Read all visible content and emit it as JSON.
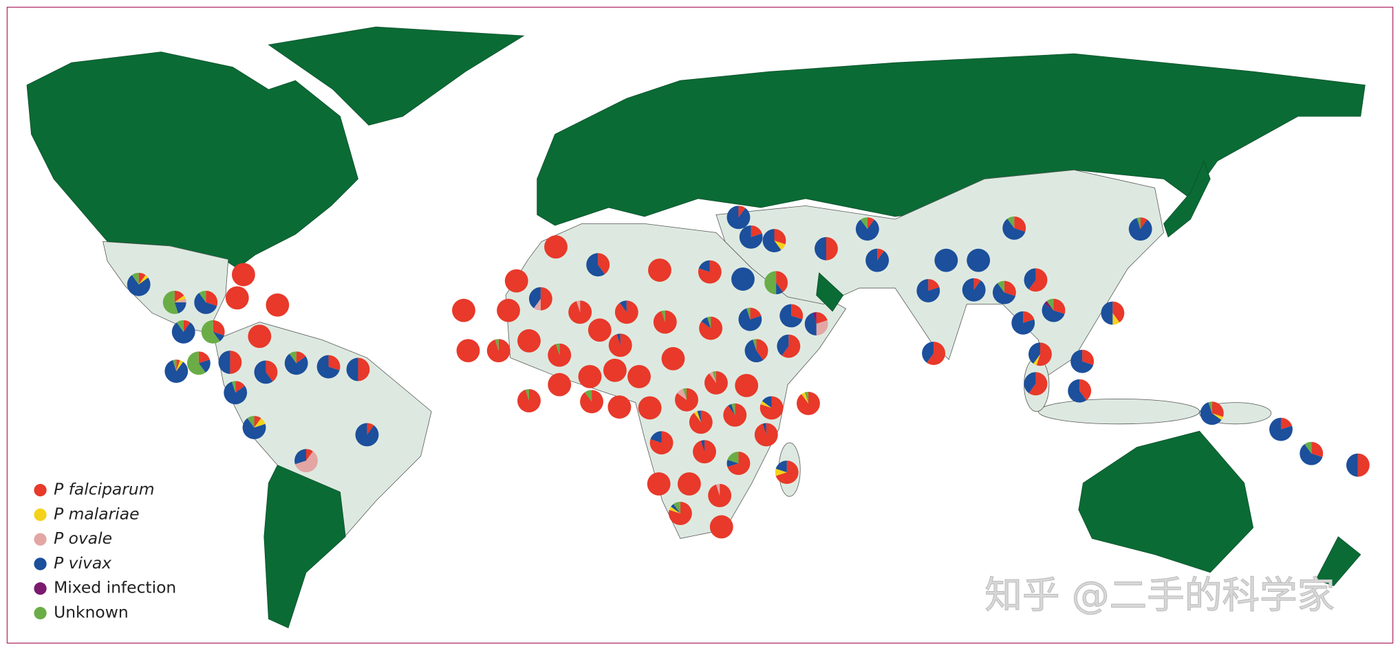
{
  "legend": {
    "series": [
      {
        "name": "P falciparum",
        "color": "#e8392a"
      },
      {
        "name": "P malariae",
        "color": "#f5d21a"
      },
      {
        "name": "P ovale",
        "color": "#e3a6a4"
      },
      {
        "name": "P vivax",
        "color": "#1c4f9c"
      },
      {
        "name": "Mixed infection",
        "color": "#7b1a6e"
      },
      {
        "name": "Unknown",
        "color": "#6aad46"
      }
    ]
  },
  "pies": [
    [
      10,
      5,
      0,
      75,
      0,
      10
    ],
    [
      15,
      5,
      5,
      20,
      0,
      55
    ],
    [
      30,
      0,
      0,
      60,
      0,
      10
    ],
    [
      100,
      0,
      0,
      0,
      0,
      0
    ],
    [
      100,
      0,
      0,
      0,
      0,
      0
    ],
    [
      100,
      0,
      0,
      0,
      0,
      0
    ],
    [
      10,
      0,
      0,
      80,
      0,
      10
    ],
    [
      30,
      0,
      0,
      10,
      0,
      60
    ],
    [
      100,
      0,
      0,
      0,
      0,
      0
    ],
    [
      5,
      5,
      0,
      85,
      0,
      5
    ],
    [
      20,
      0,
      0,
      20,
      0,
      60
    ],
    [
      50,
      0,
      0,
      50,
      0,
      0
    ],
    [
      40,
      0,
      0,
      60,
      0,
      0
    ],
    [
      15,
      0,
      0,
      75,
      0,
      10
    ],
    [
      30,
      0,
      0,
      70,
      0,
      0
    ],
    [
      50,
      0,
      0,
      50,
      0,
      0
    ],
    [
      15,
      0,
      0,
      80,
      0,
      5
    ],
    [
      10,
      10,
      0,
      70,
      0,
      10
    ],
    [
      10,
      0,
      0,
      90,
      0,
      0
    ],
    [
      10,
      0,
      60,
      30,
      0,
      0
    ],
    [
      100,
      0,
      0,
      0,
      0,
      0
    ],
    [
      100,
      0,
      0,
      0,
      0,
      0
    ],
    [
      95,
      0,
      0,
      0,
      0,
      5
    ],
    [
      100,
      0,
      0,
      0,
      0,
      0
    ],
    [
      100,
      0,
      0,
      0,
      0,
      0
    ],
    [
      50,
      0,
      10,
      40,
      0,
      0
    ],
    [
      100,
      0,
      0,
      0,
      0,
      0
    ],
    [
      100,
      0,
      0,
      0,
      0,
      0
    ],
    [
      95,
      0,
      0,
      0,
      0,
      5
    ],
    [
      95,
      0,
      5,
      0,
      0,
      0
    ],
    [
      100,
      0,
      0,
      0,
      0,
      0
    ],
    [
      95,
      0,
      0,
      5,
      0,
      0
    ],
    [
      40,
      0,
      0,
      60,
      0,
      0
    ],
    [
      100,
      0,
      0,
      0,
      0,
      0
    ],
    [
      90,
      0,
      0,
      10,
      0,
      0
    ],
    [
      95,
      0,
      0,
      0,
      0,
      5
    ],
    [
      80,
      0,
      0,
      20,
      0,
      0
    ],
    [
      85,
      0,
      0,
      10,
      0,
      5
    ],
    [
      0,
      0,
      0,
      100,
      0,
      0
    ],
    [
      40,
      0,
      0,
      10,
      0,
      50
    ],
    [
      20,
      0,
      0,
      75,
      0,
      5
    ],
    [
      30,
      0,
      0,
      70,
      0,
      0
    ],
    [
      20,
      0,
      30,
      45,
      5,
      0
    ],
    [
      60,
      0,
      0,
      40,
      0,
      0
    ],
    [
      40,
      0,
      0,
      55,
      0,
      5
    ],
    [
      100,
      0,
      0,
      0,
      0,
      0
    ],
    [
      100,
      0,
      0,
      0,
      0,
      0
    ],
    [
      100,
      0,
      0,
      0,
      0,
      0
    ],
    [
      100,
      0,
      0,
      0,
      0,
      0
    ],
    [
      100,
      0,
      0,
      0,
      0,
      0
    ],
    [
      95,
      0,
      0,
      0,
      0,
      5
    ],
    [
      90,
      0,
      0,
      0,
      0,
      10
    ],
    [
      100,
      0,
      0,
      0,
      0,
      0
    ],
    [
      100,
      0,
      0,
      0,
      0,
      0
    ],
    [
      85,
      0,
      10,
      0,
      0,
      5
    ],
    [
      90,
      0,
      5,
      0,
      0,
      5
    ],
    [
      100,
      0,
      0,
      0,
      0,
      0
    ],
    [
      90,
      5,
      0,
      5,
      0,
      0
    ],
    [
      90,
      0,
      0,
      5,
      0,
      5
    ],
    [
      80,
      5,
      0,
      15,
      0,
      0
    ],
    [
      90,
      5,
      0,
      0,
      0,
      5
    ],
    [
      80,
      0,
      0,
      20,
      0,
      0
    ],
    [
      95,
      0,
      0,
      5,
      0,
      0
    ],
    [
      95,
      0,
      0,
      5,
      0,
      0
    ],
    [
      70,
      0,
      0,
      10,
      0,
      20
    ],
    [
      70,
      10,
      0,
      20,
      0,
      0
    ],
    [
      100,
      0,
      0,
      0,
      0,
      0
    ],
    [
      100,
      0,
      0,
      0,
      0,
      0
    ],
    [
      95,
      0,
      5,
      0,
      0,
      0
    ],
    [
      80,
      5,
      0,
      5,
      0,
      10
    ],
    [
      100,
      0,
      0,
      0,
      0,
      0
    ],
    [
      10,
      0,
      0,
      90,
      0,
      0
    ],
    [
      20,
      0,
      0,
      80,
      0,
      0
    ],
    [
      30,
      10,
      0,
      60,
      0,
      0
    ],
    [
      50,
      0,
      0,
      50,
      0,
      0
    ],
    [
      10,
      0,
      0,
      80,
      0,
      10
    ],
    [
      10,
      0,
      0,
      90,
      0,
      0
    ],
    [
      0,
      0,
      0,
      100,
      0,
      0
    ],
    [
      0,
      0,
      0,
      100,
      0,
      0
    ],
    [
      30,
      0,
      0,
      60,
      0,
      10
    ],
    [
      10,
      0,
      0,
      85,
      0,
      5
    ],
    [
      20,
      0,
      0,
      80,
      0,
      0
    ],
    [
      10,
      0,
      0,
      90,
      0,
      0
    ],
    [
      30,
      0,
      0,
      60,
      0,
      10
    ],
    [
      60,
      0,
      0,
      40,
      0,
      0
    ],
    [
      30,
      0,
      0,
      55,
      5,
      10
    ],
    [
      20,
      0,
      0,
      80,
      0,
      0
    ],
    [
      40,
      10,
      0,
      50,
      0,
      0
    ],
    [
      60,
      0,
      0,
      40,
      0,
      0
    ],
    [
      55,
      5,
      0,
      40,
      0,
      0
    ],
    [
      60,
      0,
      0,
      40,
      0,
      0
    ],
    [
      30,
      0,
      0,
      70,
      0,
      0
    ],
    [
      40,
      0,
      0,
      60,
      0,
      0
    ],
    [
      30,
      5,
      0,
      60,
      0,
      5
    ],
    [
      20,
      0,
      0,
      80,
      0,
      0
    ],
    [
      30,
      0,
      0,
      60,
      0,
      10
    ],
    [
      50,
      0,
      0,
      50,
      0,
      0
    ]
  ],
  "watermark": "知乎 @二手的科学家"
}
